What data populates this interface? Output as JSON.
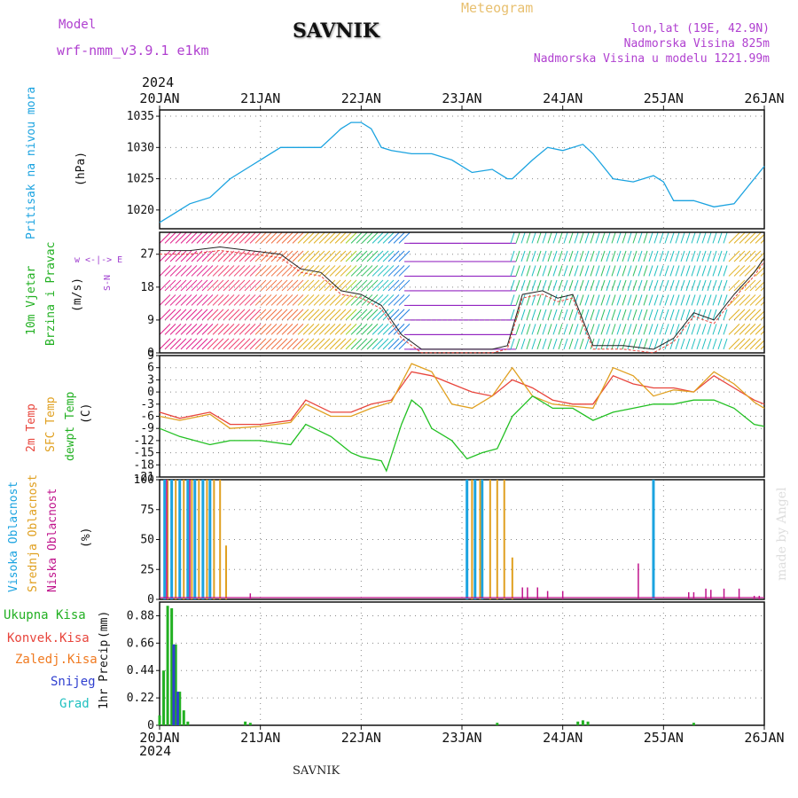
{
  "header": {
    "model_label": "Model",
    "model_name": "wrf-nmm_v3.9.1 e1km",
    "title": "SAVNIK",
    "meteogram": "Meteogram",
    "lonlat": "lon,lat (19E, 42.9N)",
    "altitude": "Nadmorska Visina 825m",
    "model_altitude": "Nadmorska Visina u modelu 1221.99m",
    "top_year": "2024",
    "bottom_year": "2024",
    "footer_station": "SAVNIK",
    "credit": "made by Angel"
  },
  "colors": {
    "pressure": "#1ba3e0",
    "t2m": "#e8453c",
    "sfc": "#e0a020",
    "dewpt": "#22c022",
    "high_cloud": "#1ba3e0",
    "mid_cloud": "#e0a020",
    "low_cloud": "#c0148c",
    "precip_total": "#22b022",
    "precip_conv": "#e8453c",
    "precip_frz": "#f07a20",
    "snow": "#3040d0",
    "hail": "#20c0c0",
    "wind_axis": "#a040d0"
  },
  "chart_data": [
    {
      "type": "line",
      "name": "pressure",
      "ylabel_main": "Pritisak na nivou mora",
      "ylabel_unit": "(hPa)",
      "yticks": [
        1020,
        1025,
        1030,
        1035
      ],
      "ylim": [
        1017,
        1036
      ],
      "x_day_labels": [
        "20JAN",
        "21JAN",
        "22JAN",
        "23JAN",
        "24JAN",
        "25JAN",
        "26JAN"
      ],
      "series": [
        {
          "x": [
            0,
            0.1,
            0.3,
            0.5,
            0.7,
            0.9,
            1.0,
            1.2,
            1.4,
            1.6,
            1.8,
            1.9,
            2.0,
            2.1,
            2.2,
            2.3,
            2.5,
            2.7,
            2.9,
            3.1,
            3.3,
            3.45,
            3.5,
            3.7,
            3.85,
            4.0,
            4.2,
            4.3,
            4.5,
            4.7,
            4.9,
            5.0,
            5.1,
            5.3,
            5.5,
            5.7,
            5.9,
            6.0
          ],
          "values": [
            1018,
            1019,
            1021,
            1022,
            1025,
            1027,
            1028,
            1030,
            1030,
            1030,
            1033,
            1034,
            1034,
            1033,
            1030,
            1029.5,
            1029,
            1029,
            1028,
            1026,
            1026.5,
            1025,
            1025,
            1028,
            1030,
            1029.5,
            1030.5,
            1029,
            1025,
            1024.5,
            1025.5,
            1024.5,
            1021.5,
            1021.5,
            1020.5,
            1021,
            1025,
            1027
          ]
        }
      ]
    },
    {
      "type": "line",
      "name": "wind",
      "ylabel_main": "10m Vjetar",
      "ylabel_sub": "Brzina i Pravac",
      "ylabel_unit": "(m/s)",
      "compass": "w <-|-> E",
      "compass_ns": "S-N",
      "yticks": [
        0,
        9,
        18,
        27
      ],
      "ylim": [
        0,
        33
      ],
      "series": [
        {
          "name": "wind_speed",
          "x": [
            0,
            0.3,
            0.6,
            0.9,
            1.2,
            1.4,
            1.6,
            1.8,
            2.0,
            2.2,
            2.4,
            2.6,
            3.0,
            3.3,
            3.45,
            3.6,
            3.8,
            3.95,
            4.1,
            4.3,
            4.6,
            4.9,
            5.1,
            5.3,
            5.5,
            5.7,
            5.9,
            6.0
          ],
          "values": [
            28,
            28,
            29,
            28,
            27,
            23,
            22,
            17,
            16,
            13,
            5,
            1,
            1,
            1,
            2,
            16,
            17,
            15,
            16,
            2,
            2,
            1,
            4,
            11,
            9,
            16,
            22,
            26
          ]
        }
      ],
      "arrow_rows": [
        1,
        5,
        9,
        13,
        17,
        21,
        25,
        30
      ],
      "arrow_colors": [
        "#e0208c",
        "#f04070",
        "#f07040",
        "#e0b020",
        "#a0d020",
        "#30c060",
        "#20c0c0",
        "#2080e0",
        "#9020c0"
      ]
    },
    {
      "type": "line",
      "name": "temperature",
      "ylabel_lines": [
        "2m Temp",
        "SFC Temp",
        "dewpt Temp"
      ],
      "ylabel_unit": "(C)",
      "yticks": [
        -21,
        -18,
        -15,
        -12,
        -9,
        -6,
        -3,
        0,
        3,
        6,
        9
      ],
      "ylim": [
        -21,
        9
      ],
      "series": [
        {
          "name": "2m Temp",
          "x": [
            0,
            0.2,
            0.5,
            0.7,
            1.0,
            1.3,
            1.45,
            1.7,
            1.9,
            2.1,
            2.3,
            2.5,
            2.7,
            2.9,
            3.1,
            3.3,
            3.5,
            3.7,
            3.9,
            4.1,
            4.3,
            4.5,
            4.7,
            4.9,
            5.1,
            5.3,
            5.5,
            5.7,
            5.9,
            6.0
          ],
          "values": [
            -5,
            -6.5,
            -5,
            -8,
            -8,
            -7,
            -2,
            -5,
            -5,
            -3,
            -2,
            5,
            4,
            2,
            0,
            -1,
            3,
            1,
            -2,
            -3,
            -3,
            4,
            2,
            1,
            1,
            0,
            4,
            1,
            -2,
            -3
          ]
        },
        {
          "name": "SFC Temp",
          "x": [
            0,
            0.2,
            0.5,
            0.7,
            1.0,
            1.3,
            1.45,
            1.7,
            1.9,
            2.1,
            2.3,
            2.5,
            2.7,
            2.9,
            3.1,
            3.3,
            3.5,
            3.7,
            3.9,
            4.1,
            4.3,
            4.5,
            4.7,
            4.9,
            5.1,
            5.3,
            5.5,
            5.7,
            5.9,
            6.0
          ],
          "values": [
            -6,
            -7,
            -5.5,
            -9,
            -8.5,
            -7.5,
            -3,
            -6,
            -6,
            -4,
            -2.5,
            7,
            5,
            -3,
            -4,
            -1,
            6,
            -1,
            -3,
            -3.5,
            -4,
            6,
            4,
            -1,
            0.5,
            0,
            5,
            2,
            -2.5,
            -4
          ]
        },
        {
          "name": "dewpt Temp",
          "x": [
            0,
            0.2,
            0.5,
            0.7,
            1.0,
            1.3,
            1.45,
            1.7,
            1.9,
            2.0,
            2.2,
            2.25,
            2.4,
            2.5,
            2.6,
            2.7,
            2.9,
            3.05,
            3.2,
            3.35,
            3.5,
            3.7,
            3.9,
            4.1,
            4.3,
            4.5,
            4.7,
            4.9,
            5.1,
            5.3,
            5.5,
            5.7,
            5.9,
            6.0
          ],
          "values": [
            -9,
            -11,
            -13,
            -12,
            -12,
            -13,
            -8,
            -11,
            -15,
            -16,
            -17,
            -19.5,
            -8,
            -2,
            -4,
            -9,
            -12,
            -16.5,
            -15,
            -14,
            -6,
            -1,
            -4,
            -4,
            -7,
            -5,
            -4,
            -3,
            -3,
            -2,
            -2,
            -4,
            -8,
            -8.5
          ]
        }
      ]
    },
    {
      "type": "bar",
      "name": "cloud",
      "ylabel_lines": [
        "Visoka Oblacnost",
        "Srednja Oblacnost",
        "Niska Oblacnost"
      ],
      "ylabel_unit": "(%)",
      "yticks": [
        0,
        25,
        50,
        75,
        100
      ],
      "ylim": [
        0,
        100
      ],
      "series": [
        {
          "name": "Visoka Oblacnost",
          "x": [
            0.05,
            0.12,
            0.2,
            0.28,
            0.35,
            0.43,
            0.5,
            3.05,
            3.13,
            3.2,
            4.9
          ],
          "values": [
            100,
            100,
            100,
            100,
            100,
            100,
            100,
            100,
            100,
            100,
            100
          ]
        },
        {
          "name": "Srednja Oblacnost",
          "x": [
            0.08,
            0.16,
            0.24,
            0.32,
            0.39,
            0.47,
            0.54,
            0.6,
            0.66,
            3.1,
            3.18,
            3.28,
            3.35,
            3.42,
            3.5
          ],
          "values": [
            100,
            100,
            100,
            100,
            100,
            100,
            100,
            100,
            45,
            100,
            100,
            100,
            100,
            100,
            35
          ]
        },
        {
          "name": "Niska Oblacnost",
          "x": [
            0.07,
            0.3,
            0.9,
            3.6,
            3.65,
            3.75,
            3.85,
            4.0,
            4.75,
            5.25,
            5.3,
            5.42,
            5.47,
            5.6,
            5.75,
            5.9,
            5.95
          ],
          "values": [
            100,
            100,
            5,
            10,
            10,
            10,
            7,
            7,
            30,
            6,
            6,
            9,
            8,
            9,
            9,
            3,
            3
          ]
        }
      ]
    },
    {
      "type": "bar",
      "name": "precip",
      "legend": [
        "Ukupna Kisa",
        "Konvek.Kisa",
        "Zaledj.Kisa",
        "Snijeg",
        "Grad"
      ],
      "ylabel_main": "1hr Precip",
      "ylabel_unit": "(mm)",
      "yticks": [
        0,
        0.22,
        0.44,
        0.66,
        0.88
      ],
      "ylim": [
        0,
        0.99
      ],
      "x_day_labels": [
        "20JAN",
        "21JAN",
        "22JAN",
        "23JAN",
        "24JAN",
        "25JAN",
        "26JAN"
      ],
      "series": [
        {
          "name": "Ukupna Kisa",
          "x": [
            0.0,
            0.04,
            0.08,
            0.12,
            0.16,
            0.2,
            0.24,
            0.28,
            0.85,
            0.9,
            3.35,
            4.15,
            4.2,
            4.25,
            5.3
          ],
          "values": [
            0.08,
            0.44,
            0.96,
            0.94,
            0.65,
            0.27,
            0.12,
            0.03,
            0.03,
            0.02,
            0.02,
            0.03,
            0.04,
            0.03,
            0.02
          ]
        },
        {
          "name": "Snijeg",
          "x": [
            0.14,
            0.18
          ],
          "values": [
            0.65,
            0.27
          ]
        }
      ]
    }
  ]
}
